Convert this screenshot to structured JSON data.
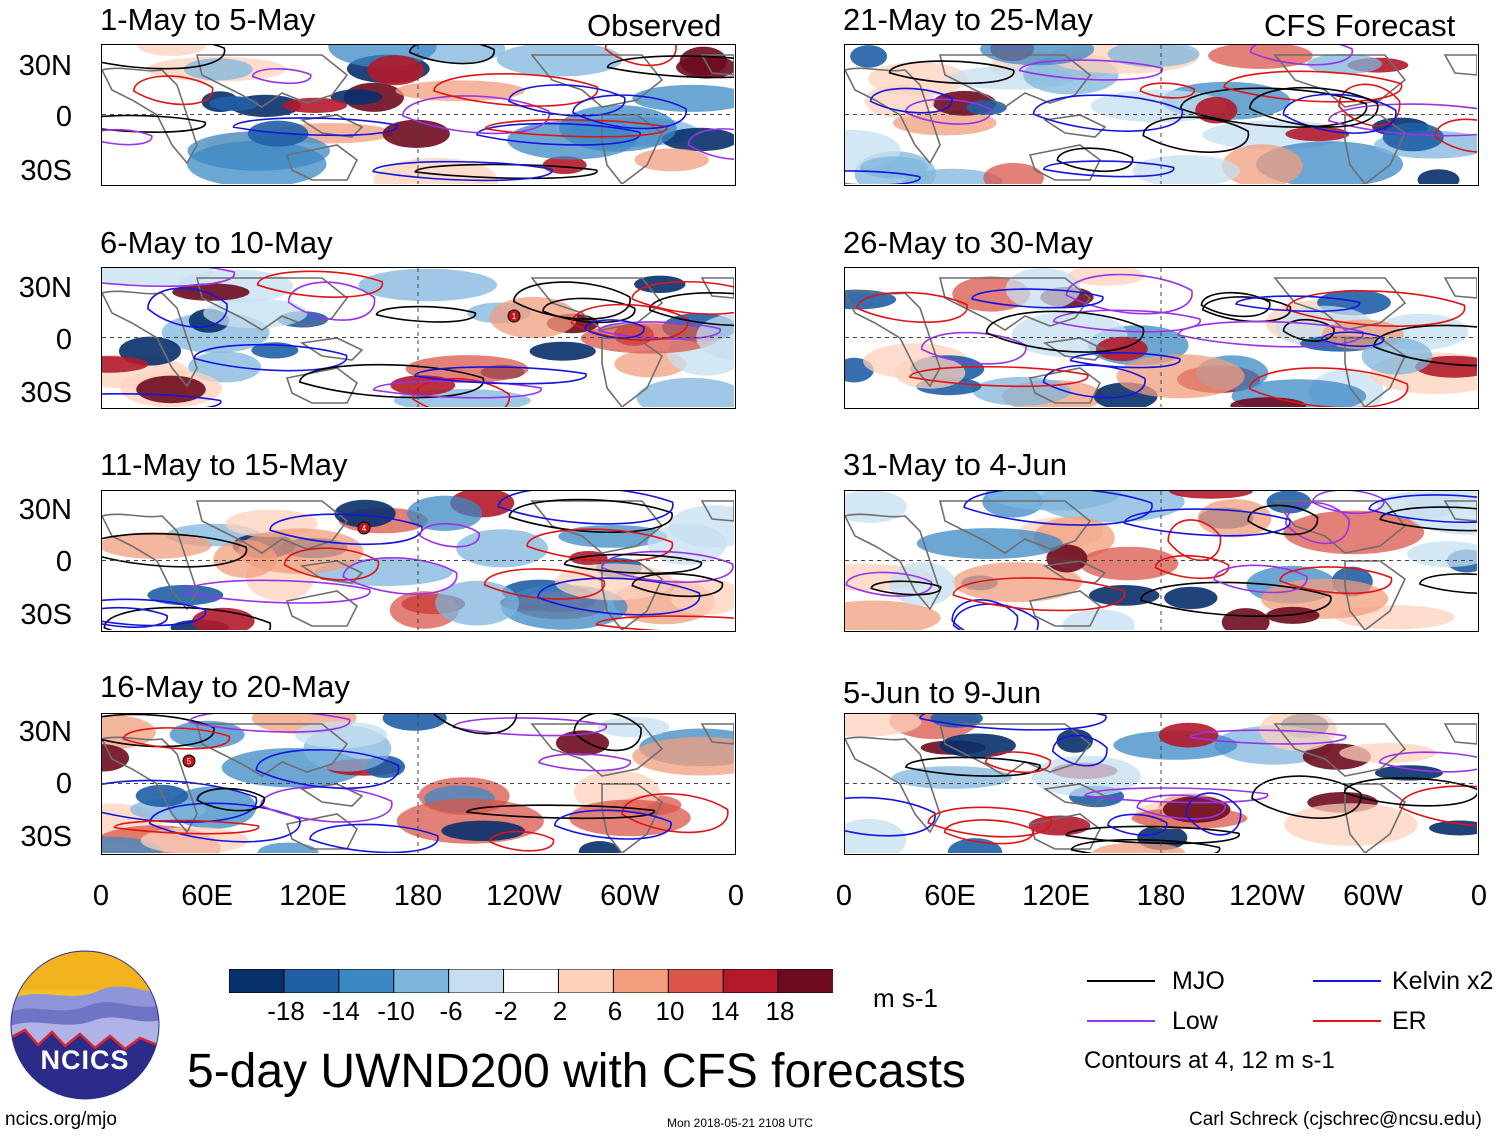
{
  "columns": {
    "left_header": "Observed",
    "right_header": "CFS Forecast"
  },
  "panels": [
    {
      "title": "1-May to 5-May",
      "column": "observed"
    },
    {
      "title": "6-May to 10-May",
      "column": "observed"
    },
    {
      "title": "11-May to 15-May",
      "column": "observed"
    },
    {
      "title": "16-May to 20-May",
      "column": "observed"
    },
    {
      "title": "21-May to 25-May",
      "column": "forecast"
    },
    {
      "title": "26-May to 30-May",
      "column": "forecast"
    },
    {
      "title": "31-May to 4-Jun",
      "column": "forecast"
    },
    {
      "title": "5-Jun to 9-Jun",
      "column": "forecast"
    }
  ],
  "lat_labels": [
    "30N",
    "0",
    "30S"
  ],
  "lon_labels": [
    "0",
    "60E",
    "120E",
    "180",
    "120W",
    "60W",
    "0"
  ],
  "colorbar": {
    "tick_labels": [
      "-18",
      "-14",
      "-10",
      "-6",
      "-2",
      "2",
      "6",
      "10",
      "14",
      "18"
    ],
    "units": "m s-1",
    "colors": [
      "#08306b",
      "#1f5fa6",
      "#3b88c4",
      "#7db5dc",
      "#c6dff0",
      "#ffffff",
      "#fdd2bc",
      "#f29e7e",
      "#d9554a",
      "#b3192b",
      "#6e0b1f"
    ]
  },
  "legend": {
    "mjo": {
      "label": "MJO",
      "color": "#000000"
    },
    "kelvin": {
      "label": "Kelvin x2",
      "color": "#1515e0"
    },
    "low": {
      "label": "Low",
      "color": "#9a32e8"
    },
    "er": {
      "label": "ER",
      "color": "#e01414"
    },
    "contours_note": "Contours at 4, 12 m s-1"
  },
  "logo": {
    "text": "NCICS"
  },
  "main_title": "5-day UWND200 with CFS forecasts",
  "footer": {
    "url": "ncics.org/mjo",
    "timestamp": "Mon 2018-05-21 2108 UTC",
    "author": "Carl Schreck (cjschrec@ncsu.edu)"
  },
  "storm_markers": [
    {
      "panel": 1,
      "label": "1"
    },
    {
      "panel": 2,
      "label": "4"
    },
    {
      "panel": 3,
      "label": "5"
    }
  ]
}
